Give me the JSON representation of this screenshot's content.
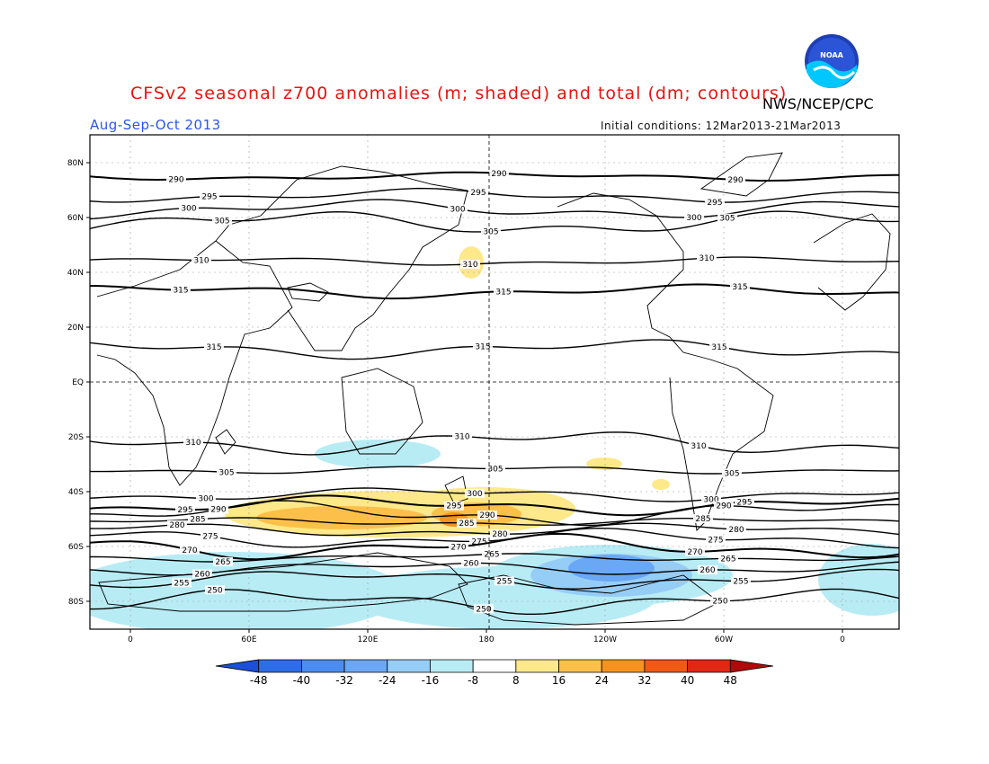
{
  "title": "CFSv2 seasonal z700 anomalies (m; shaded) and total (dm; contours)",
  "season": "Aug-Sep-Oct 2013",
  "agency": "NWS/NCEP/CPC",
  "logo_text": "NOAA",
  "initial_conditions": "Initial conditions: 12Mar2013-21Mar2013",
  "map": {
    "lat_labels": [
      "80N",
      "60N",
      "40N",
      "20N",
      "EQ",
      "20S",
      "40S",
      "60S",
      "80S"
    ],
    "lon_labels": [
      "0",
      "60E",
      "120E",
      "180",
      "120W",
      "60W",
      "0"
    ]
  },
  "colorbar": {
    "labels": [
      "-48",
      "-40",
      "-32",
      "-24",
      "-16",
      "-8",
      "8",
      "16",
      "24",
      "32",
      "40",
      "48"
    ],
    "colors": [
      "#1b4fd8",
      "#2d6ee8",
      "#4a8cf0",
      "#6aa8f5",
      "#96cdf7",
      "#b8ecf5",
      "#ffffff",
      "#fde88a",
      "#fcc04a",
      "#f7921e",
      "#f05a14",
      "#e02814",
      "#b00a0a"
    ]
  },
  "contours": [
    {
      "label": "290",
      "lat": 75
    },
    {
      "label": "295",
      "lat": 68
    },
    {
      "label": "300",
      "lat": 63
    },
    {
      "label": "305",
      "lat": 58
    },
    {
      "label": "310",
      "lat": 44
    },
    {
      "label": "315",
      "lat": 33
    },
    {
      "label": "315",
      "lat": 12
    },
    {
      "label": "310",
      "lat": -22
    },
    {
      "label": "305",
      "lat": -32
    },
    {
      "label": "300",
      "lat": -41
    },
    {
      "label": "295",
      "lat": -45
    },
    {
      "label": "290",
      "lat": -48
    },
    {
      "label": "285",
      "lat": -51
    },
    {
      "label": "280",
      "lat": -54
    },
    {
      "label": "275",
      "lat": -57
    },
    {
      "label": "270",
      "lat": -60
    },
    {
      "label": "265",
      "lat": -64
    },
    {
      "label": "260",
      "lat": -68
    },
    {
      "label": "255",
      "lat": -72
    },
    {
      "label": "250",
      "lat": -80
    }
  ]
}
